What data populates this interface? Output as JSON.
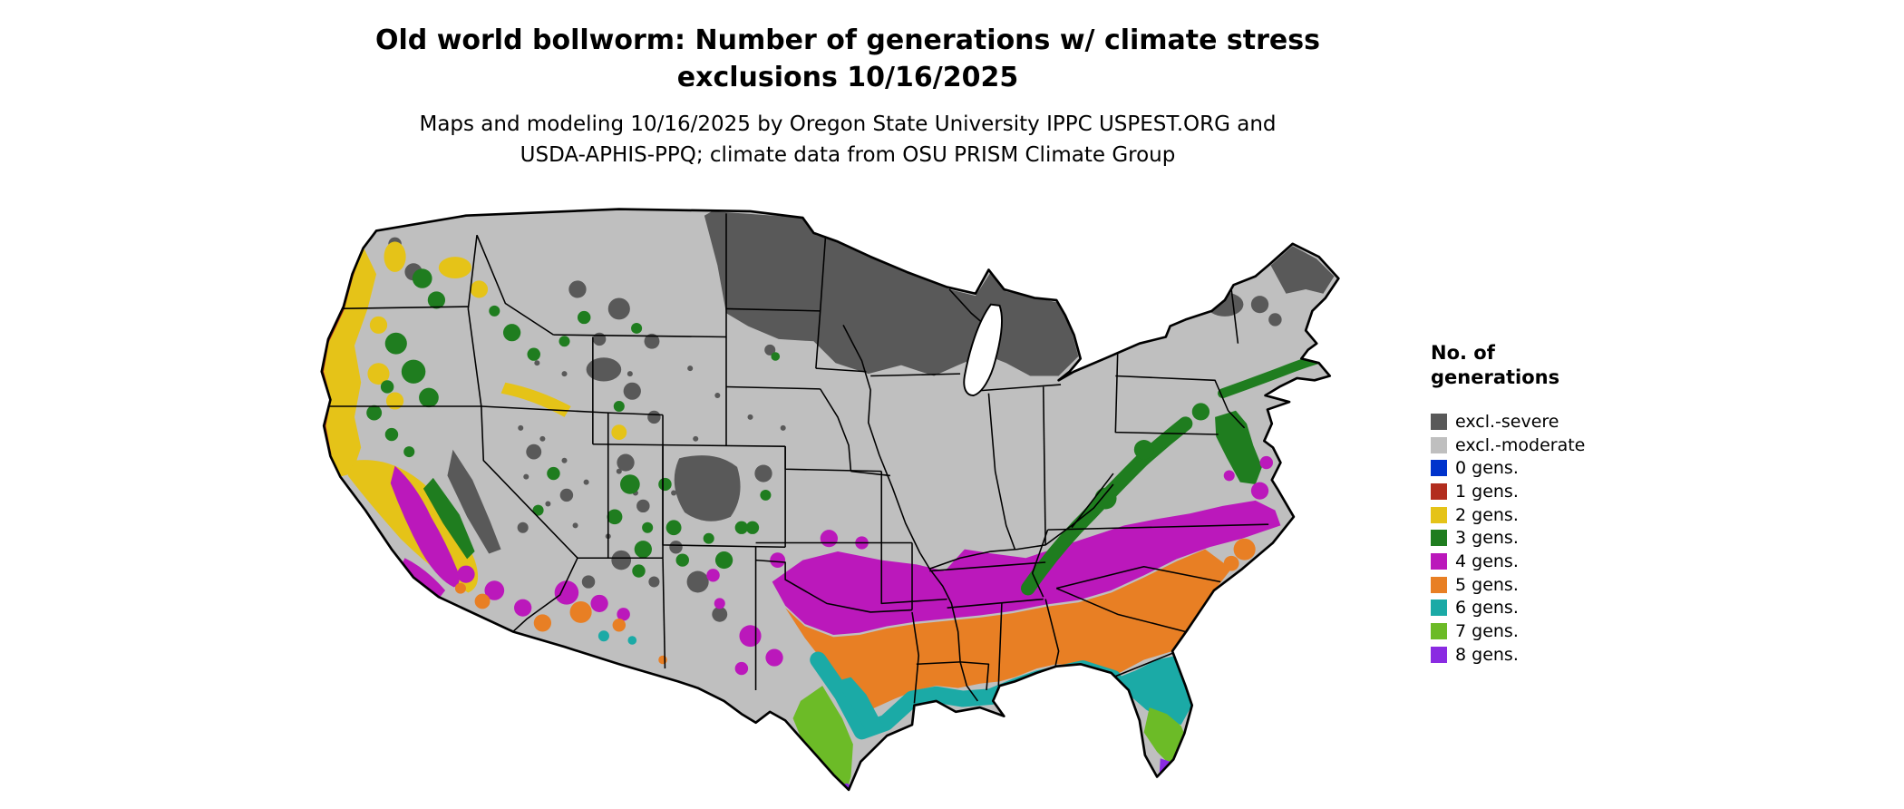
{
  "header": {
    "title_line1": "Old world bollworm: Number of generations w/ climate stress",
    "title_line2": "exclusions 10/16/2025",
    "subtitle_line1": "Maps and modeling 10/16/2025 by Oregon State University IPPC USPEST.ORG and",
    "subtitle_line2": "USDA-APHIS-PPQ; climate data from OSU PRISM Climate Group"
  },
  "legend": {
    "title_line1": "No. of",
    "title_line2": "generations",
    "items": [
      {
        "label": "excl.-severe",
        "key": "severe"
      },
      {
        "label": "excl.-moderate",
        "key": "moderate"
      },
      {
        "label": "0 gens.",
        "key": "g0"
      },
      {
        "label": "1 gens.",
        "key": "g1"
      },
      {
        "label": "2 gens.",
        "key": "g2"
      },
      {
        "label": "3 gens.",
        "key": "g3"
      },
      {
        "label": "4 gens.",
        "key": "g4"
      },
      {
        "label": "5 gens.",
        "key": "g5"
      },
      {
        "label": "6 gens.",
        "key": "g6"
      },
      {
        "label": "7 gens.",
        "key": "g7"
      },
      {
        "label": "8 gens.",
        "key": "g8"
      }
    ]
  },
  "palette": {
    "severe": "#595959",
    "moderate": "#bfbfbf",
    "g0": "#0033cc",
    "g1": "#b22d1e",
    "g2": "#e5c318",
    "g3": "#1f7d1f",
    "g4": "#bb18bb",
    "g5": "#e87f24",
    "g6": "#1baaa6",
    "g7": "#6cbb27",
    "g8": "#8a2be2"
  }
}
